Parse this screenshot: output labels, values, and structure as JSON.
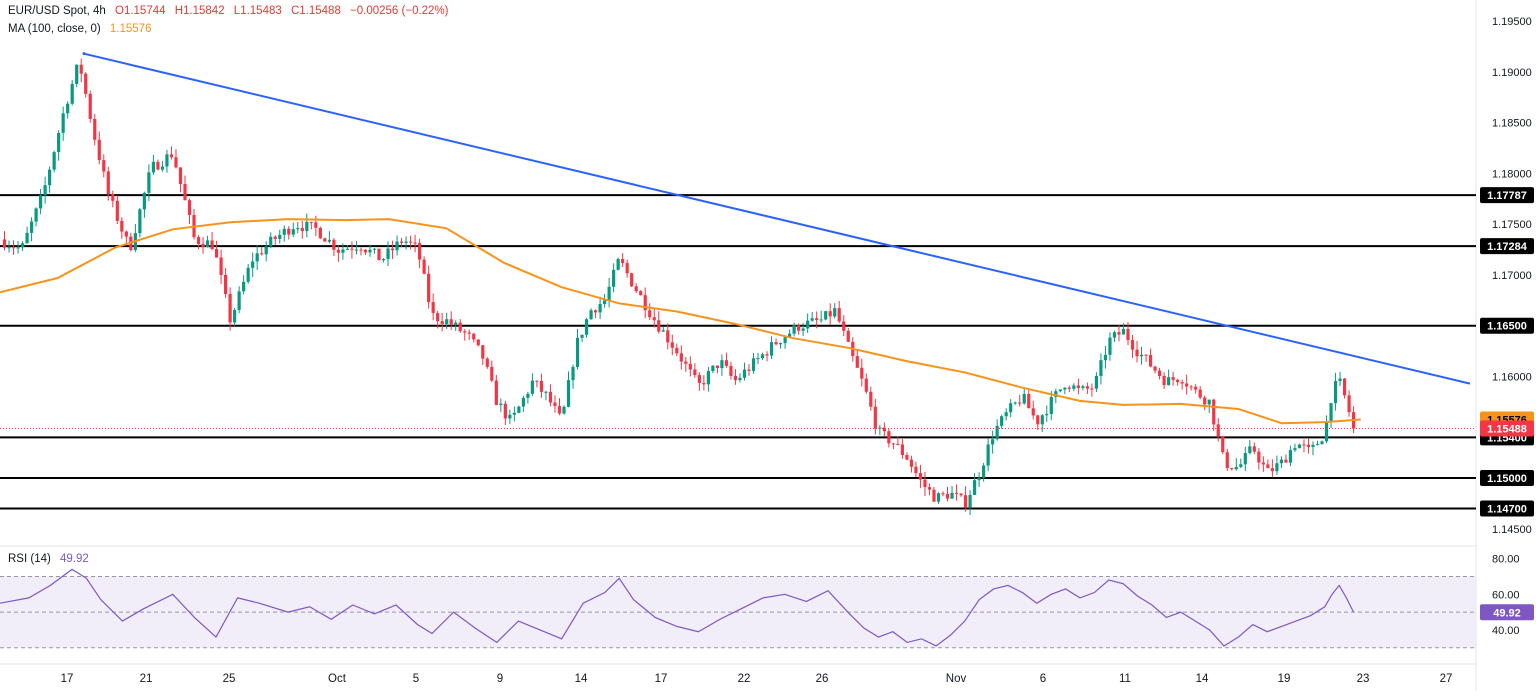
{
  "header": {
    "symbol": "EUR/USD Spot, 4h",
    "open": "O1.15744",
    "high": "H1.15842",
    "low": "L1.15483",
    "close": "C1.15488",
    "change": "−0.00256 (−0.22%)",
    "ma_label": "MA (100, close, 0)",
    "ma_value": "1.15576",
    "rsi_label": "RSI (14)",
    "rsi_value": "49.92"
  },
  "colors": {
    "bull": "#089981",
    "bear": "#f23645",
    "ma": "#f7931a",
    "trendline": "#2962ff",
    "rsi": "#7e57c2",
    "rsi_band": "#ede7f6"
  },
  "chart_data": [
    {
      "type": "candlestick",
      "title": "EUR/USD Spot, 4h",
      "x_ticks": [
        "17",
        "21",
        "25",
        "Oct",
        "5",
        "9",
        "14",
        "17",
        "22",
        "26",
        "Nov",
        "6",
        "11",
        "14",
        "19",
        "23",
        "27"
      ],
      "y_ticks": [
        "1.19500",
        "1.19000",
        "1.18500",
        "1.18000",
        "1.17500",
        "1.17000",
        "1.16500",
        "1.16000",
        "1.15500",
        "1.15000",
        "1.14500"
      ],
      "ylim": [
        1.1435,
        1.1963
      ],
      "last_price": 1.15488,
      "last_price_label": "1.15488",
      "horizontal_levels": [
        {
          "value": 1.17787,
          "label": "1.17787"
        },
        {
          "value": 1.17284,
          "label": "1.17284"
        },
        {
          "value": 1.165,
          "label": "1.16500"
        },
        {
          "value": 1.154,
          "label": "1.15400"
        },
        {
          "value": 1.15,
          "label": "1.15000"
        },
        {
          "value": 1.147,
          "label": "1.14700"
        }
      ],
      "trendline": {
        "start": {
          "x": "Sep 17",
          "y": 1.1918
        },
        "end": {
          "x": "Nov 27",
          "y": 1.1593
        }
      },
      "ma": {
        "name": "MA (100, close, 0)",
        "last_label": "1.15576",
        "points": [
          [
            0.0,
            1.1683
          ],
          [
            0.04,
            1.1697
          ],
          [
            0.08,
            1.1727
          ],
          [
            0.12,
            1.1745
          ],
          [
            0.16,
            1.1752
          ],
          [
            0.2,
            1.1755
          ],
          [
            0.24,
            1.1754
          ],
          [
            0.27,
            1.1755
          ],
          [
            0.31,
            1.1746
          ],
          [
            0.35,
            1.1712
          ],
          [
            0.39,
            1.1688
          ],
          [
            0.43,
            1.1672
          ],
          [
            0.47,
            1.1664
          ],
          [
            0.51,
            1.1652
          ],
          [
            0.55,
            1.1638
          ],
          [
            0.59,
            1.1628
          ],
          [
            0.63,
            1.1615
          ],
          [
            0.67,
            1.1604
          ],
          [
            0.71,
            1.1589
          ],
          [
            0.75,
            1.1576
          ],
          [
            0.78,
            1.1572
          ],
          [
            0.82,
            1.1573
          ],
          [
            0.86,
            1.1568
          ],
          [
            0.89,
            1.1554
          ],
          [
            0.92,
            1.1555
          ],
          [
            0.945,
            1.15576
          ]
        ]
      },
      "price_path": [
        [
          0.0,
          1.1735
        ],
        [
          0.015,
          1.1725
        ],
        [
          0.03,
          1.178
        ],
        [
          0.045,
          1.1865
        ],
        [
          0.055,
          1.191
        ],
        [
          0.065,
          1.184
        ],
        [
          0.075,
          1.178
        ],
        [
          0.09,
          1.1725
        ],
        [
          0.105,
          1.1805
        ],
        [
          0.12,
          1.182
        ],
        [
          0.135,
          1.1735
        ],
        [
          0.148,
          1.173
        ],
        [
          0.16,
          1.1655
        ],
        [
          0.175,
          1.1715
        ],
        [
          0.19,
          1.1735
        ],
        [
          0.205,
          1.175
        ],
        [
          0.22,
          1.1745
        ],
        [
          0.235,
          1.1725
        ],
        [
          0.25,
          1.173
        ],
        [
          0.265,
          1.1715
        ],
        [
          0.28,
          1.1735
        ],
        [
          0.29,
          1.1725
        ],
        [
          0.3,
          1.166
        ],
        [
          0.31,
          1.1655
        ],
        [
          0.325,
          1.164
        ],
        [
          0.335,
          1.162
        ],
        [
          0.345,
          1.1575
        ],
        [
          0.355,
          1.1555
        ],
        [
          0.37,
          1.1595
        ],
        [
          0.38,
          1.158
        ],
        [
          0.39,
          1.1555
        ],
        [
          0.4,
          1.163
        ],
        [
          0.41,
          1.1665
        ],
        [
          0.42,
          1.1675
        ],
        [
          0.43,
          1.1715
        ],
        [
          0.44,
          1.169
        ],
        [
          0.455,
          1.1655
        ],
        [
          0.47,
          1.1625
        ],
        [
          0.485,
          1.159
        ],
        [
          0.5,
          1.1615
        ],
        [
          0.51,
          1.1595
        ],
        [
          0.525,
          1.1615
        ],
        [
          0.54,
          1.1635
        ],
        [
          0.555,
          1.165
        ],
        [
          0.57,
          1.1655
        ],
        [
          0.58,
          1.1665
        ],
        [
          0.59,
          1.1625
        ],
        [
          0.6,
          1.159
        ],
        [
          0.61,
          1.1545
        ],
        [
          0.62,
          1.1535
        ],
        [
          0.63,
          1.152
        ],
        [
          0.64,
          1.1495
        ],
        [
          0.65,
          1.148
        ],
        [
          0.66,
          1.1485
        ],
        [
          0.67,
          1.1475
        ],
        [
          0.68,
          1.1505
        ],
        [
          0.69,
          1.1545
        ],
        [
          0.7,
          1.1565
        ],
        [
          0.71,
          1.158
        ],
        [
          0.72,
          1.1555
        ],
        [
          0.73,
          1.1575
        ],
        [
          0.74,
          1.1595
        ],
        [
          0.75,
          1.1585
        ],
        [
          0.76,
          1.159
        ],
        [
          0.77,
          1.1635
        ],
        [
          0.78,
          1.1645
        ],
        [
          0.79,
          1.1625
        ],
        [
          0.8,
          1.161
        ],
        [
          0.81,
          1.1595
        ],
        [
          0.82,
          1.16
        ],
        [
          0.83,
          1.1585
        ],
        [
          0.84,
          1.1575
        ],
        [
          0.85,
          1.1515
        ],
        [
          0.86,
          1.151
        ],
        [
          0.87,
          1.153
        ],
        [
          0.88,
          1.1505
        ],
        [
          0.89,
          1.1515
        ],
        [
          0.9,
          1.1535
        ],
        [
          0.91,
          1.1525
        ],
        [
          0.92,
          1.1545
        ],
        [
          0.925,
          1.1585
        ],
        [
          0.93,
          1.1595
        ],
        [
          0.935,
          1.1575
        ],
        [
          0.94,
          1.15488
        ]
      ]
    },
    {
      "type": "line",
      "title": "RSI (14)",
      "y_ticks": [
        "80.00",
        "60.00",
        "40.00"
      ],
      "ylim": [
        22,
        86
      ],
      "band": [
        30,
        70
      ],
      "last_label": "49.92",
      "values": [
        [
          0.0,
          55
        ],
        [
          0.02,
          58
        ],
        [
          0.035,
          65
        ],
        [
          0.05,
          74
        ],
        [
          0.06,
          69
        ],
        [
          0.07,
          57
        ],
        [
          0.085,
          45
        ],
        [
          0.1,
          52
        ],
        [
          0.12,
          60
        ],
        [
          0.135,
          47
        ],
        [
          0.15,
          36
        ],
        [
          0.165,
          58
        ],
        [
          0.18,
          55
        ],
        [
          0.2,
          50
        ],
        [
          0.215,
          53
        ],
        [
          0.23,
          46
        ],
        [
          0.245,
          54
        ],
        [
          0.26,
          49
        ],
        [
          0.275,
          54
        ],
        [
          0.29,
          43
        ],
        [
          0.3,
          38
        ],
        [
          0.315,
          50
        ],
        [
          0.33,
          41
        ],
        [
          0.345,
          33
        ],
        [
          0.36,
          45
        ],
        [
          0.375,
          40
        ],
        [
          0.39,
          35
        ],
        [
          0.405,
          55
        ],
        [
          0.42,
          61
        ],
        [
          0.43,
          69
        ],
        [
          0.44,
          57
        ],
        [
          0.455,
          47
        ],
        [
          0.47,
          42
        ],
        [
          0.485,
          39
        ],
        [
          0.5,
          46
        ],
        [
          0.515,
          52
        ],
        [
          0.53,
          58
        ],
        [
          0.545,
          60
        ],
        [
          0.56,
          56
        ],
        [
          0.575,
          62
        ],
        [
          0.59,
          49
        ],
        [
          0.6,
          41
        ],
        [
          0.61,
          36
        ],
        [
          0.62,
          39
        ],
        [
          0.63,
          33
        ],
        [
          0.64,
          35
        ],
        [
          0.65,
          31
        ],
        [
          0.66,
          37
        ],
        [
          0.67,
          45
        ],
        [
          0.68,
          57
        ],
        [
          0.69,
          63
        ],
        [
          0.7,
          65
        ],
        [
          0.71,
          61
        ],
        [
          0.72,
          55
        ],
        [
          0.73,
          60
        ],
        [
          0.74,
          63
        ],
        [
          0.75,
          58
        ],
        [
          0.76,
          61
        ],
        [
          0.77,
          68
        ],
        [
          0.78,
          66
        ],
        [
          0.79,
          59
        ],
        [
          0.8,
          54
        ],
        [
          0.81,
          47
        ],
        [
          0.82,
          50
        ],
        [
          0.83,
          45
        ],
        [
          0.84,
          40
        ],
        [
          0.85,
          31
        ],
        [
          0.86,
          36
        ],
        [
          0.87,
          43
        ],
        [
          0.88,
          39
        ],
        [
          0.89,
          42
        ],
        [
          0.9,
          45
        ],
        [
          0.91,
          48
        ],
        [
          0.92,
          53
        ],
        [
          0.925,
          60
        ],
        [
          0.93,
          65
        ],
        [
          0.935,
          58
        ],
        [
          0.94,
          49.92
        ]
      ]
    }
  ]
}
